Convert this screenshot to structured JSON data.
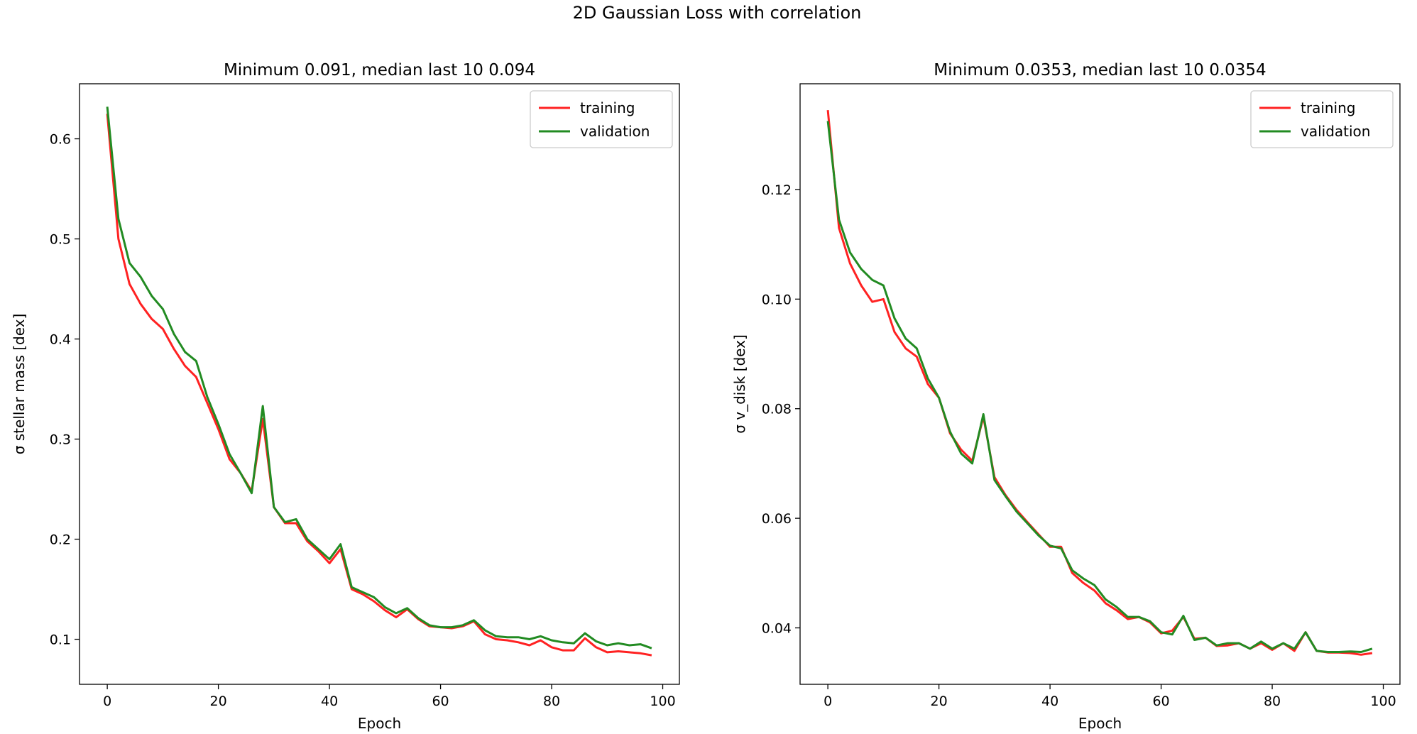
{
  "figure": {
    "suptitle": "2D Gaussian Loss with correlation"
  },
  "chart_data": [
    {
      "type": "line",
      "title": "Minimum 0.091, median last 10 0.094",
      "xlabel": "Epoch",
      "ylabel": "σ stellar mass [dex]",
      "xlim": [
        -5,
        103
      ],
      "ylim": [
        0.055,
        0.655
      ],
      "xticks": [
        0,
        20,
        40,
        60,
        80,
        100
      ],
      "yticks": [
        0.1,
        0.2,
        0.3,
        0.4,
        0.5,
        0.6
      ],
      "ytick_labels": [
        "0.1",
        "0.2",
        "0.3",
        "0.4",
        "0.5",
        "0.6"
      ],
      "legend_position": "top-right",
      "x": [
        0,
        2,
        4,
        6,
        8,
        10,
        12,
        14,
        16,
        18,
        20,
        22,
        24,
        26,
        28,
        30,
        32,
        34,
        36,
        38,
        40,
        42,
        44,
        46,
        48,
        50,
        52,
        54,
        56,
        58,
        60,
        62,
        64,
        66,
        68,
        70,
        72,
        74,
        76,
        78,
        80,
        82,
        84,
        86,
        88,
        90,
        92,
        94,
        96,
        98
      ],
      "series": [
        {
          "name": "training",
          "color": "#ff2222",
          "values": [
            0.625,
            0.5,
            0.455,
            0.435,
            0.42,
            0.41,
            0.39,
            0.373,
            0.362,
            0.336,
            0.31,
            0.28,
            0.266,
            0.248,
            0.32,
            0.232,
            0.216,
            0.216,
            0.198,
            0.188,
            0.176,
            0.19,
            0.15,
            0.145,
            0.138,
            0.129,
            0.122,
            0.13,
            0.12,
            0.113,
            0.112,
            0.111,
            0.113,
            0.118,
            0.105,
            0.1,
            0.099,
            0.097,
            0.094,
            0.099,
            0.092,
            0.089,
            0.089,
            0.101,
            0.092,
            0.087,
            0.088,
            0.087,
            0.086,
            0.084
          ]
        },
        {
          "name": "validation",
          "color": "#228b22",
          "values": [
            0.632,
            0.52,
            0.476,
            0.462,
            0.443,
            0.43,
            0.405,
            0.387,
            0.378,
            0.342,
            0.315,
            0.285,
            0.266,
            0.246,
            0.333,
            0.232,
            0.217,
            0.22,
            0.2,
            0.19,
            0.18,
            0.195,
            0.152,
            0.147,
            0.142,
            0.132,
            0.126,
            0.131,
            0.121,
            0.114,
            0.112,
            0.112,
            0.114,
            0.119,
            0.109,
            0.103,
            0.102,
            0.102,
            0.1,
            0.103,
            0.099,
            0.097,
            0.096,
            0.106,
            0.098,
            0.094,
            0.096,
            0.094,
            0.095,
            0.091
          ]
        }
      ]
    },
    {
      "type": "line",
      "title": "Minimum 0.0353, median last 10 0.0354",
      "xlabel": "Epoch",
      "ylabel": "σ v_disk [dex]",
      "xlim": [
        -5,
        103
      ],
      "ylim": [
        0.0297,
        0.1393
      ],
      "xticks": [
        0,
        20,
        40,
        60,
        80,
        100
      ],
      "yticks": [
        0.04,
        0.06,
        0.08,
        0.1,
        0.12
      ],
      "ytick_labels": [
        "0.04",
        "0.06",
        "0.08",
        "0.10",
        "0.12"
      ],
      "legend_position": "top-right",
      "x": [
        0,
        2,
        4,
        6,
        8,
        10,
        12,
        14,
        16,
        18,
        20,
        22,
        24,
        26,
        28,
        30,
        32,
        34,
        36,
        38,
        40,
        42,
        44,
        46,
        48,
        50,
        52,
        54,
        56,
        58,
        60,
        62,
        64,
        66,
        68,
        70,
        72,
        74,
        76,
        78,
        80,
        82,
        84,
        86,
        88,
        90,
        92,
        94,
        96,
        98
      ],
      "series": [
        {
          "name": "training",
          "color": "#ff2222",
          "values": [
            0.1345,
            0.113,
            0.1065,
            0.1025,
            0.0995,
            0.1,
            0.094,
            0.091,
            0.0895,
            0.0845,
            0.082,
            0.0755,
            0.0725,
            0.0705,
            0.0785,
            0.0675,
            0.0642,
            0.0615,
            0.0592,
            0.057,
            0.0548,
            0.0548,
            0.05,
            0.0482,
            0.0468,
            0.0445,
            0.0432,
            0.0416,
            0.042,
            0.041,
            0.039,
            0.0395,
            0.042,
            0.038,
            0.0382,
            0.0367,
            0.0368,
            0.0372,
            0.0362,
            0.0372,
            0.036,
            0.0372,
            0.0358,
            0.0392,
            0.0358,
            0.0355,
            0.0355,
            0.0354,
            0.0351,
            0.0354
          ]
        },
        {
          "name": "validation",
          "color": "#228b22",
          "values": [
            0.1325,
            0.1145,
            0.1085,
            0.1055,
            0.1035,
            0.1025,
            0.0965,
            0.0928,
            0.091,
            0.0855,
            0.082,
            0.0758,
            0.0718,
            0.07,
            0.079,
            0.067,
            0.064,
            0.0612,
            0.059,
            0.0568,
            0.055,
            0.0545,
            0.0505,
            0.049,
            0.0478,
            0.0452,
            0.0438,
            0.042,
            0.042,
            0.0412,
            0.0392,
            0.0388,
            0.0422,
            0.0378,
            0.0382,
            0.0368,
            0.0372,
            0.0372,
            0.0362,
            0.0375,
            0.0362,
            0.0372,
            0.0362,
            0.0392,
            0.0358,
            0.0356,
            0.0356,
            0.0357,
            0.0356,
            0.0362
          ]
        }
      ]
    }
  ]
}
